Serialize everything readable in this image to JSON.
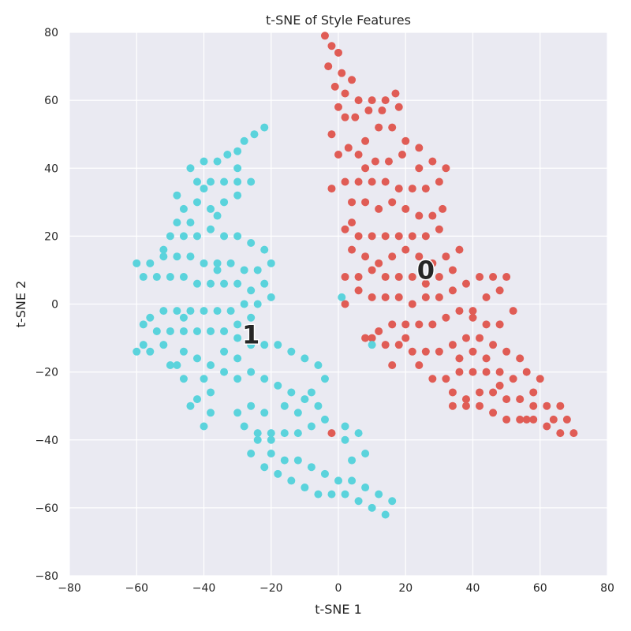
{
  "chart_data": {
    "type": "scatter",
    "title": "t-SNE of Style Features",
    "xlabel": "t-SNE 1",
    "ylabel": "t-SNE 2",
    "xlim": [
      -80,
      80
    ],
    "ylim": [
      -80,
      80
    ],
    "xticks": [
      -80,
      -60,
      -40,
      -20,
      0,
      20,
      40,
      60,
      80
    ],
    "yticks": [
      -80,
      -60,
      -40,
      -20,
      0,
      20,
      40,
      60,
      80
    ],
    "xtick_labels": [
      "−80",
      "−60",
      "−40",
      "−20",
      "0",
      "20",
      "40",
      "60",
      "80"
    ],
    "ytick_labels": [
      "−80",
      "−60",
      "−40",
      "−20",
      "0",
      "20",
      "40",
      "60",
      "80"
    ],
    "grid": true,
    "background_color": "#eaeaf2",
    "grid_color": "#ffffff",
    "series": [
      {
        "label": "0",
        "color": "#e05c55",
        "label_position": [
          26,
          10
        ],
        "points": [
          [
            -4,
            79
          ],
          [
            -2,
            76
          ],
          [
            0,
            74
          ],
          [
            -3,
            70
          ],
          [
            1,
            68
          ],
          [
            4,
            66
          ],
          [
            -1,
            64
          ],
          [
            2,
            62
          ],
          [
            6,
            60
          ],
          [
            10,
            60
          ],
          [
            14,
            60
          ],
          [
            17,
            62
          ],
          [
            13,
            57
          ],
          [
            9,
            57
          ],
          [
            5,
            55
          ],
          [
            2,
            55
          ],
          [
            12,
            52
          ],
          [
            16,
            52
          ],
          [
            20,
            48
          ],
          [
            8,
            48
          ],
          [
            3,
            46
          ],
          [
            0,
            44
          ],
          [
            6,
            44
          ],
          [
            11,
            42
          ],
          [
            15,
            42
          ],
          [
            19,
            44
          ],
          [
            24,
            46
          ],
          [
            28,
            42
          ],
          [
            32,
            40
          ],
          [
            30,
            36
          ],
          [
            26,
            34
          ],
          [
            22,
            34
          ],
          [
            18,
            34
          ],
          [
            14,
            36
          ],
          [
            10,
            36
          ],
          [
            6,
            36
          ],
          [
            2,
            36
          ],
          [
            -2,
            34
          ],
          [
            4,
            30
          ],
          [
            8,
            30
          ],
          [
            12,
            28
          ],
          [
            16,
            30
          ],
          [
            20,
            28
          ],
          [
            24,
            26
          ],
          [
            28,
            26
          ],
          [
            31,
            28
          ],
          [
            30,
            22
          ],
          [
            26,
            20
          ],
          [
            22,
            20
          ],
          [
            18,
            20
          ],
          [
            14,
            20
          ],
          [
            10,
            20
          ],
          [
            6,
            20
          ],
          [
            2,
            22
          ],
          [
            4,
            16
          ],
          [
            8,
            14
          ],
          [
            12,
            12
          ],
          [
            16,
            14
          ],
          [
            20,
            16
          ],
          [
            24,
            14
          ],
          [
            28,
            12
          ],
          [
            32,
            14
          ],
          [
            36,
            16
          ],
          [
            34,
            10
          ],
          [
            30,
            8
          ],
          [
            26,
            6
          ],
          [
            22,
            8
          ],
          [
            18,
            8
          ],
          [
            14,
            8
          ],
          [
            10,
            10
          ],
          [
            6,
            8
          ],
          [
            2,
            8
          ],
          [
            6,
            4
          ],
          [
            10,
            2
          ],
          [
            14,
            2
          ],
          [
            18,
            2
          ],
          [
            22,
            0
          ],
          [
            26,
            2
          ],
          [
            30,
            2
          ],
          [
            34,
            4
          ],
          [
            38,
            6
          ],
          [
            42,
            8
          ],
          [
            46,
            8
          ],
          [
            50,
            8
          ],
          [
            48,
            4
          ],
          [
            44,
            2
          ],
          [
            40,
            -2
          ],
          [
            36,
            -2
          ],
          [
            32,
            -4
          ],
          [
            28,
            -6
          ],
          [
            24,
            -6
          ],
          [
            20,
            -6
          ],
          [
            16,
            -6
          ],
          [
            12,
            -8
          ],
          [
            8,
            -10
          ],
          [
            14,
            -12
          ],
          [
            18,
            -12
          ],
          [
            22,
            -14
          ],
          [
            26,
            -14
          ],
          [
            30,
            -14
          ],
          [
            34,
            -12
          ],
          [
            38,
            -10
          ],
          [
            42,
            -10
          ],
          [
            46,
            -12
          ],
          [
            50,
            -14
          ],
          [
            54,
            -16
          ],
          [
            56,
            -20
          ],
          [
            52,
            -22
          ],
          [
            48,
            -20
          ],
          [
            44,
            -20
          ],
          [
            40,
            -20
          ],
          [
            36,
            -20
          ],
          [
            32,
            -22
          ],
          [
            28,
            -22
          ],
          [
            34,
            -26
          ],
          [
            38,
            -28
          ],
          [
            42,
            -26
          ],
          [
            46,
            -26
          ],
          [
            50,
            -28
          ],
          [
            54,
            -28
          ],
          [
            58,
            -26
          ],
          [
            58,
            -30
          ],
          [
            62,
            -30
          ],
          [
            64,
            -34
          ],
          [
            66,
            -30
          ],
          [
            68,
            -34
          ],
          [
            70,
            -38
          ],
          [
            66,
            -38
          ],
          [
            62,
            -36
          ],
          [
            58,
            -34
          ],
          [
            54,
            -34
          ],
          [
            50,
            -34
          ],
          [
            46,
            -32
          ],
          [
            42,
            -30
          ],
          [
            38,
            -30
          ],
          [
            34,
            -30
          ],
          [
            52,
            -2
          ],
          [
            48,
            -6
          ],
          [
            44,
            -6
          ],
          [
            40,
            -14
          ],
          [
            36,
            -16
          ],
          [
            24,
            -18
          ],
          [
            20,
            -10
          ],
          [
            16,
            -18
          ],
          [
            10,
            -10
          ],
          [
            40,
            -4
          ],
          [
            44,
            -16
          ],
          [
            48,
            -24
          ],
          [
            56,
            -34
          ],
          [
            60,
            -22
          ],
          [
            -2,
            -38
          ],
          [
            2,
            0
          ],
          [
            4,
            24
          ],
          [
            8,
            40
          ],
          [
            24,
            40
          ],
          [
            18,
            58
          ],
          [
            0,
            58
          ],
          [
            -2,
            50
          ]
        ]
      },
      {
        "label": "1",
        "color": "#5ad3dc",
        "label_position": [
          -26,
          -9
        ],
        "points": [
          [
            -22,
            52
          ],
          [
            -25,
            50
          ],
          [
            -28,
            48
          ],
          [
            -30,
            45
          ],
          [
            -33,
            44
          ],
          [
            -36,
            42
          ],
          [
            -40,
            42
          ],
          [
            -44,
            40
          ],
          [
            -42,
            36
          ],
          [
            -38,
            36
          ],
          [
            -34,
            36
          ],
          [
            -30,
            36
          ],
          [
            -26,
            36
          ],
          [
            -30,
            32
          ],
          [
            -34,
            30
          ],
          [
            -38,
            28
          ],
          [
            -42,
            30
          ],
          [
            -46,
            28
          ],
          [
            -48,
            24
          ],
          [
            -50,
            20
          ],
          [
            -46,
            20
          ],
          [
            -42,
            20
          ],
          [
            -38,
            22
          ],
          [
            -34,
            20
          ],
          [
            -30,
            20
          ],
          [
            -26,
            18
          ],
          [
            -22,
            16
          ],
          [
            -20,
            12
          ],
          [
            -24,
            10
          ],
          [
            -28,
            10
          ],
          [
            -32,
            12
          ],
          [
            -36,
            12
          ],
          [
            -40,
            12
          ],
          [
            -44,
            14
          ],
          [
            -48,
            14
          ],
          [
            -52,
            16
          ],
          [
            -56,
            12
          ],
          [
            -60,
            12
          ],
          [
            -58,
            8
          ],
          [
            -54,
            8
          ],
          [
            -50,
            8
          ],
          [
            -46,
            8
          ],
          [
            -42,
            6
          ],
          [
            -38,
            6
          ],
          [
            -34,
            6
          ],
          [
            -30,
            6
          ],
          [
            -26,
            4
          ],
          [
            -22,
            6
          ],
          [
            -24,
            0
          ],
          [
            -28,
            0
          ],
          [
            -32,
            -2
          ],
          [
            -36,
            -2
          ],
          [
            -40,
            -2
          ],
          [
            -44,
            -2
          ],
          [
            -48,
            -2
          ],
          [
            -52,
            -2
          ],
          [
            -56,
            -4
          ],
          [
            -58,
            -6
          ],
          [
            -54,
            -8
          ],
          [
            -50,
            -8
          ],
          [
            -46,
            -8
          ],
          [
            -42,
            -8
          ],
          [
            -38,
            -8
          ],
          [
            -34,
            -8
          ],
          [
            -30,
            -10
          ],
          [
            -26,
            -12
          ],
          [
            -22,
            -12
          ],
          [
            -18,
            -12
          ],
          [
            -14,
            -14
          ],
          [
            -10,
            -16
          ],
          [
            -6,
            -18
          ],
          [
            -58,
            -12
          ],
          [
            -60,
            -14
          ],
          [
            -56,
            -14
          ],
          [
            -52,
            -12
          ],
          [
            -50,
            -18
          ],
          [
            -46,
            -14
          ],
          [
            -42,
            -16
          ],
          [
            -38,
            -18
          ],
          [
            -34,
            -20
          ],
          [
            -30,
            -22
          ],
          [
            -26,
            -20
          ],
          [
            -22,
            -22
          ],
          [
            -18,
            -24
          ],
          [
            -14,
            -26
          ],
          [
            -10,
            -28
          ],
          [
            -6,
            -30
          ],
          [
            -4,
            -34
          ],
          [
            -8,
            -36
          ],
          [
            -12,
            -38
          ],
          [
            -16,
            -38
          ],
          [
            -20,
            -38
          ],
          [
            -24,
            -38
          ],
          [
            -28,
            -36
          ],
          [
            -30,
            -32
          ],
          [
            -26,
            -30
          ],
          [
            -22,
            -32
          ],
          [
            -40,
            -22
          ],
          [
            -38,
            -26
          ],
          [
            -42,
            -28
          ],
          [
            -38,
            -32
          ],
          [
            -40,
            -36
          ],
          [
            -44,
            -30
          ],
          [
            -46,
            -22
          ],
          [
            -48,
            -18
          ],
          [
            -20,
            -44
          ],
          [
            -16,
            -46
          ],
          [
            -12,
            -46
          ],
          [
            -8,
            -48
          ],
          [
            -4,
            -50
          ],
          [
            0,
            -52
          ],
          [
            4,
            -52
          ],
          [
            8,
            -54
          ],
          [
            12,
            -56
          ],
          [
            16,
            -58
          ],
          [
            14,
            -62
          ],
          [
            10,
            -60
          ],
          [
            6,
            -58
          ],
          [
            2,
            -56
          ],
          [
            -2,
            -56
          ],
          [
            -6,
            -56
          ],
          [
            -10,
            -54
          ],
          [
            -14,
            -52
          ],
          [
            -18,
            -50
          ],
          [
            -22,
            -48
          ],
          [
            -26,
            -44
          ],
          [
            -24,
            -40
          ],
          [
            -20,
            -40
          ],
          [
            2,
            -40
          ],
          [
            6,
            -38
          ],
          [
            2,
            -36
          ],
          [
            4,
            -46
          ],
          [
            8,
            -44
          ],
          [
            -16,
            -30
          ],
          [
            -12,
            -32
          ],
          [
            -8,
            -26
          ],
          [
            -4,
            -22
          ],
          [
            -34,
            -14
          ],
          [
            -30,
            -16
          ],
          [
            -36,
            10
          ],
          [
            -44,
            24
          ],
          [
            -36,
            26
          ],
          [
            -26,
            -4
          ],
          [
            -20,
            2
          ],
          [
            -30,
            -6
          ],
          [
            1,
            2
          ],
          [
            10,
            -12
          ],
          [
            -30,
            40
          ],
          [
            -40,
            34
          ],
          [
            -48,
            32
          ],
          [
            -52,
            14
          ],
          [
            -46,
            -4
          ]
        ]
      }
    ]
  }
}
